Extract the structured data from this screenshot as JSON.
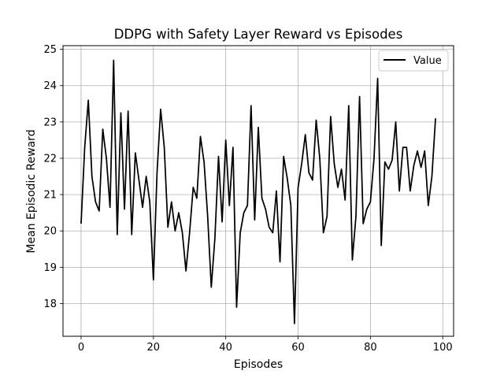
{
  "chart_data": {
    "type": "line",
    "title": "DDPG with Safety Layer Reward vs Episodes",
    "xlabel": "Episodes",
    "ylabel": "Mean Episodic Reward",
    "xlim": [
      -5,
      103
    ],
    "ylim": [
      17.1,
      25.1
    ],
    "xticks": [
      0,
      20,
      40,
      60,
      80,
      100
    ],
    "yticks": [
      18,
      19,
      20,
      21,
      22,
      23,
      24,
      25
    ],
    "grid": true,
    "legend": "top-right",
    "series": [
      {
        "name": "Value",
        "color": "#000000",
        "x": [
          0,
          1,
          2,
          3,
          4,
          5,
          6,
          7,
          8,
          9,
          10,
          11,
          12,
          13,
          14,
          15,
          16,
          17,
          18,
          19,
          20,
          21,
          22,
          23,
          24,
          25,
          26,
          27,
          28,
          29,
          30,
          31,
          32,
          33,
          34,
          35,
          36,
          37,
          38,
          39,
          40,
          41,
          42,
          43,
          44,
          45,
          46,
          47,
          48,
          49,
          50,
          51,
          52,
          53,
          54,
          55,
          56,
          57,
          58,
          59,
          60,
          61,
          62,
          63,
          64,
          65,
          66,
          67,
          68,
          69,
          70,
          71,
          72,
          73,
          74,
          75,
          76,
          77,
          78,
          79,
          80,
          81,
          82,
          83,
          84,
          85,
          86,
          87,
          88,
          89,
          90,
          91,
          92,
          93,
          94,
          95,
          96,
          97,
          98
        ],
        "y": [
          20.2,
          22.3,
          23.6,
          21.5,
          20.8,
          20.55,
          22.8,
          22.0,
          20.65,
          24.7,
          19.9,
          23.25,
          20.6,
          23.3,
          19.9,
          22.15,
          21.4,
          20.65,
          21.5,
          20.8,
          18.65,
          21.6,
          23.35,
          22.3,
          20.1,
          20.8,
          20.0,
          20.5,
          19.95,
          18.9,
          19.95,
          21.2,
          20.9,
          22.6,
          21.9,
          20.4,
          18.45,
          19.8,
          22.05,
          20.25,
          22.5,
          20.7,
          22.3,
          17.9,
          19.95,
          20.5,
          20.7,
          23.45,
          20.3,
          22.85,
          20.9,
          20.6,
          20.1,
          19.95,
          21.1,
          19.15,
          22.05,
          21.45,
          20.7,
          17.45,
          21.2,
          21.85,
          22.65,
          21.6,
          21.4,
          23.05,
          22.0,
          19.95,
          20.4,
          23.15,
          21.85,
          21.2,
          21.7,
          20.85,
          23.45,
          19.2,
          20.4,
          23.7,
          20.2,
          20.6,
          20.8,
          22.0,
          24.2,
          19.6,
          21.9,
          21.7,
          21.95,
          23.0,
          21.1,
          22.3,
          22.3,
          21.1,
          21.8,
          22.2,
          21.75,
          22.2,
          20.7,
          21.5,
          23.1
        ]
      }
    ]
  }
}
